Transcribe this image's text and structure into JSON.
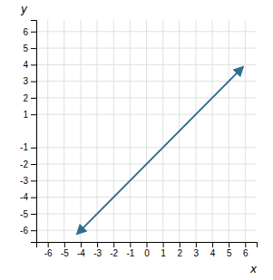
{
  "chart_data": {
    "type": "line",
    "xlabel": "x",
    "ylabel": "y",
    "x": [
      -4.2,
      5.85
    ],
    "values": [
      -6.2,
      3.85
    ],
    "color": "#2e6f8e",
    "xlim": [
      -6.7,
      6.7
    ],
    "ylim": [
      -6.7,
      6.7
    ],
    "xticks": [
      -6,
      -5,
      -4,
      -3,
      -2,
      -1,
      0,
      1,
      2,
      3,
      4,
      5,
      6
    ],
    "yticks": [
      -6,
      -5,
      -4,
      -3,
      -2,
      -1,
      1,
      2,
      3,
      4,
      5,
      6
    ],
    "grid": true
  }
}
